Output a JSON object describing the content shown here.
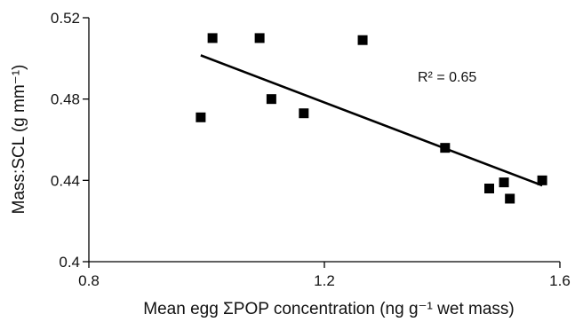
{
  "chart_data": {
    "type": "scatter",
    "xlabel": "Mean egg ΣPOP concentration (ng g⁻¹ wet mass)",
    "ylabel": "Mass:SCL (g mm⁻¹)",
    "xlim": [
      0.8,
      1.6
    ],
    "ylim": [
      0.4,
      0.52
    ],
    "x_ticks": [
      "0.8",
      "1.2",
      "1.6"
    ],
    "y_ticks": [
      "0.4",
      "0.44",
      "0.48",
      "0.52"
    ],
    "grid": false,
    "points": [
      {
        "x": 0.99,
        "y": 0.471
      },
      {
        "x": 1.01,
        "y": 0.51
      },
      {
        "x": 1.09,
        "y": 0.51
      },
      {
        "x": 1.11,
        "y": 0.48
      },
      {
        "x": 1.165,
        "y": 0.473
      },
      {
        "x": 1.265,
        "y": 0.509
      },
      {
        "x": 1.405,
        "y": 0.456
      },
      {
        "x": 1.48,
        "y": 0.436
      },
      {
        "x": 1.505,
        "y": 0.439
      },
      {
        "x": 1.515,
        "y": 0.431
      },
      {
        "x": 1.57,
        "y": 0.44
      }
    ],
    "trendline": {
      "x": [
        0.99,
        1.57
      ],
      "y": [
        0.5015,
        0.4375
      ]
    },
    "annotation": "R² = 0.65",
    "marker_color": "#000000"
  }
}
